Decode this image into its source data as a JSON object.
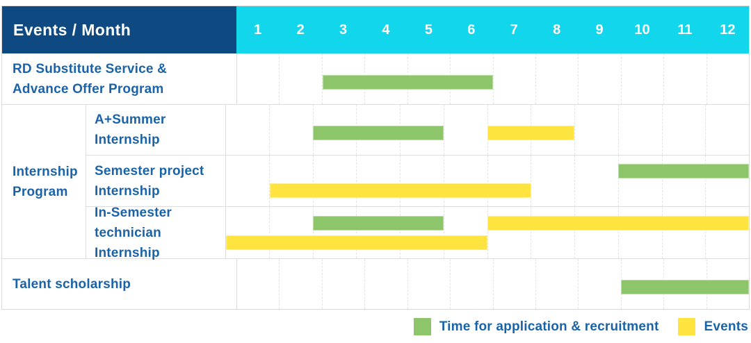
{
  "colors": {
    "header_bg": "#0e4a81",
    "months_bg": "#12d6ec",
    "label_text": "#1a63a8",
    "green": "#8cc56a",
    "yellow": "#ffe33e",
    "grid_solid": "#dedede",
    "grid_dashed": "#e3e3e3"
  },
  "header": {
    "title": "Events / Month",
    "months": [
      "1",
      "2",
      "3",
      "4",
      "5",
      "6",
      "7",
      "8",
      "9",
      "10",
      "11",
      "12"
    ]
  },
  "groups": [
    {
      "label": "Internship\nProgram"
    }
  ],
  "rows": [
    {
      "label": "RD Substitute Service &\nAdvance Offer Program"
    },
    {
      "label": "A+Summer\nInternship"
    },
    {
      "label": "Semester project\nInternship"
    },
    {
      "label": "In-Semester\ntechnician Internship"
    },
    {
      "label": "Talent scholarship"
    }
  ],
  "legend": [
    {
      "swatch": "green",
      "label": "Time for application & recruitment"
    },
    {
      "swatch": "yellow",
      "label": "Events"
    }
  ],
  "chart_data": {
    "type": "bar",
    "subtype": "gantt",
    "title": "Events / Month",
    "x_axis": {
      "label": "Month",
      "ticks": [
        1,
        2,
        3,
        4,
        5,
        6,
        7,
        8,
        9,
        10,
        11,
        12
      ],
      "range": [
        1,
        12
      ],
      "grid": "dashed-vertical"
    },
    "legend_position": "bottom-right",
    "series_legend": [
      {
        "name": "Time for application & recruitment",
        "color": "#8cc56a"
      },
      {
        "name": "Events",
        "color": "#ffe33e"
      }
    ],
    "tasks": [
      {
        "row": "RD Substitute Service & Advance Offer Program",
        "group": null,
        "lines": 1,
        "bars": [
          {
            "series": "Time for application & recruitment",
            "color": "green",
            "start_month": 3,
            "end_month": 6,
            "line": 0
          }
        ]
      },
      {
        "row": "A+Summer Internship",
        "group": "Internship Program",
        "lines": 1,
        "bars": [
          {
            "series": "Time for application & recruitment",
            "color": "green",
            "start_month": 3,
            "end_month": 5,
            "line": 0
          },
          {
            "series": "Events",
            "color": "yellow",
            "start_month": 7,
            "end_month": 8,
            "line": 0
          }
        ]
      },
      {
        "row": "Semester project Internship",
        "group": "Internship Program",
        "lines": 2,
        "bars": [
          {
            "series": "Time for application & recruitment",
            "color": "green",
            "start_month": 10,
            "end_month": 12,
            "line": 0
          },
          {
            "series": "Events",
            "color": "yellow",
            "start_month": 2,
            "end_month": 7,
            "line": 1
          }
        ]
      },
      {
        "row": "In-Semester technician Internship",
        "group": "Internship Program",
        "lines": 2,
        "bars": [
          {
            "series": "Time for application & recruitment",
            "color": "green",
            "start_month": 3,
            "end_month": 5,
            "line": 0
          },
          {
            "series": "Events",
            "color": "yellow",
            "start_month": 7,
            "end_month": 12,
            "line": 0
          },
          {
            "series": "Events",
            "color": "yellow",
            "start_month": 1,
            "end_month": 6,
            "line": 1
          }
        ]
      },
      {
        "row": "Talent scholarship",
        "group": null,
        "lines": 1,
        "bars": [
          {
            "series": "Time for application & recruitment",
            "color": "green",
            "start_month": 10,
            "end_month": 12,
            "line": 0
          }
        ]
      }
    ]
  }
}
